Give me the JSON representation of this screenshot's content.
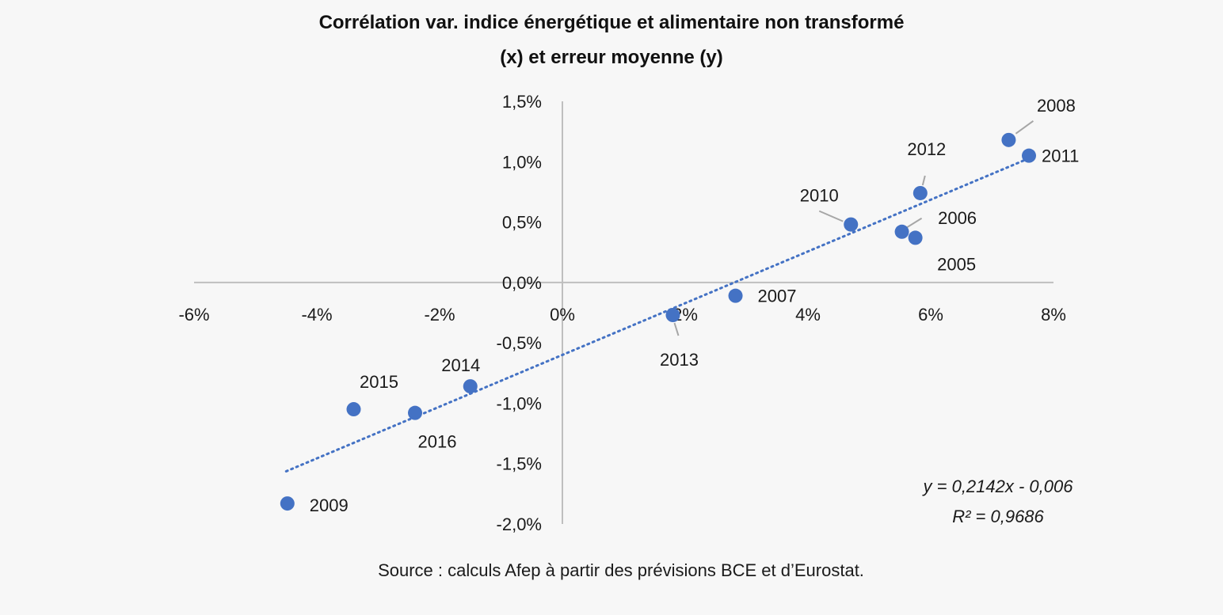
{
  "chart_data": {
    "type": "scatter",
    "title_lines": [
      "Corrélation var. indice énergétique et alimentaire non transformé",
      "(x) et erreur moyenne (y)"
    ],
    "xlabel": "",
    "ylabel": "",
    "xlim": [
      -0.06,
      0.08
    ],
    "ylim": [
      -0.02,
      0.015
    ],
    "x_ticks": [
      -0.06,
      -0.04,
      -0.02,
      0,
      0.02,
      0.04,
      0.06,
      0.08
    ],
    "x_tick_labels": [
      "-6%",
      "-4%",
      "-2%",
      "0%",
      "2%",
      "4%",
      "6%",
      "8%"
    ],
    "y_ticks": [
      0.015,
      0.01,
      0.005,
      0,
      -0.005,
      -0.01,
      -0.015,
      -0.02
    ],
    "y_tick_labels": [
      "1,5%",
      "1,0%",
      "0,5%",
      "0,0%",
      "-0,5%",
      "-1,0%",
      "-1,5%",
      "-2,0%"
    ],
    "grid": false,
    "marker_color": "#4472c4",
    "trendline_color": "#4472c4",
    "points": [
      {
        "label": "2005",
        "x": 0.0575,
        "y": 0.0037
      },
      {
        "label": "2006",
        "x": 0.0553,
        "y": 0.0042
      },
      {
        "label": "2007",
        "x": 0.0282,
        "y": -0.0011
      },
      {
        "label": "2008",
        "x": 0.0727,
        "y": 0.0118
      },
      {
        "label": "2009",
        "x": -0.0448,
        "y": -0.0183
      },
      {
        "label": "2010",
        "x": 0.047,
        "y": 0.0048
      },
      {
        "label": "2011",
        "x": 0.076,
        "y": 0.0105
      },
      {
        "label": "2012",
        "x": 0.0583,
        "y": 0.0074
      },
      {
        "label": "2013",
        "x": 0.018,
        "y": -0.0027
      },
      {
        "label": "2014",
        "x": -0.015,
        "y": -0.0086
      },
      {
        "label": "2015",
        "x": -0.034,
        "y": -0.0105
      },
      {
        "label": "2016",
        "x": -0.024,
        "y": -0.0108
      }
    ],
    "trendline": {
      "slope": 0.2142,
      "intercept": -0.006,
      "x_range": [
        -0.045,
        0.076
      ],
      "equation": "y = 0,2142x - 0,006",
      "r2": "R² = 0,9686"
    }
  },
  "source": "Source : calculs Afep à partir des prévisions BCE et d’Eurostat."
}
